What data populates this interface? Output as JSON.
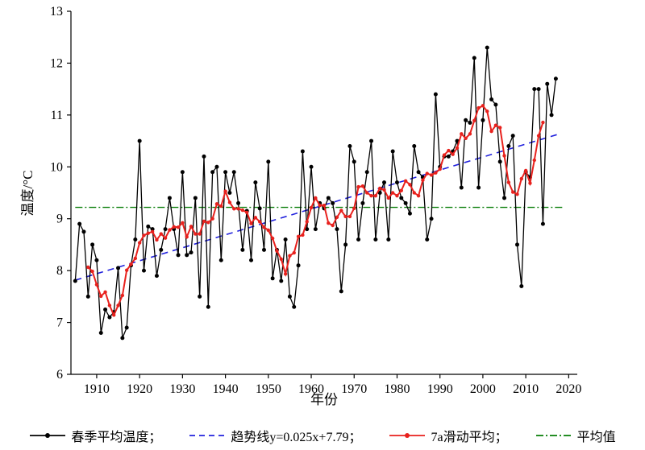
{
  "figure_title": "",
  "colors": {
    "series_main": "#000000",
    "trend": "#2222dd",
    "moving_avg": "#e8211d",
    "mean_line": "#067d06",
    "axis": "#000000"
  },
  "legend": {
    "items": [
      {
        "label": "春季平均温度；",
        "style": "solid-dot",
        "color": "#000000"
      },
      {
        "label": "趋势线y=0.025x+7.79；",
        "style": "dashed",
        "color": "#2222dd"
      },
      {
        "label": "7a滑动平均；",
        "style": "solid-dot",
        "color": "#e8211d"
      },
      {
        "label": "平均值",
        "style": "dash-dot",
        "color": "#067d06"
      }
    ]
  },
  "chart_data": {
    "type": "line",
    "title": "",
    "xlabel": "年份",
    "ylabel": "温度/°C",
    "xlim": [
      1904,
      2022
    ],
    "ylim": [
      6,
      13
    ],
    "xticks": [
      1910,
      1920,
      1930,
      1940,
      1950,
      1960,
      1970,
      1980,
      1990,
      2000,
      2010,
      2020
    ],
    "yticks": [
      6,
      7,
      8,
      9,
      10,
      11,
      12,
      13
    ],
    "grid": false,
    "legend_position": "bottom",
    "series": [
      {
        "name": "春季平均温度",
        "type": "line-markers",
        "start_year": 1905,
        "values": [
          7.8,
          8.9,
          8.75,
          7.5,
          8.5,
          8.2,
          6.8,
          7.25,
          7.1,
          7.2,
          8.05,
          6.7,
          6.9,
          8.1,
          8.6,
          10.5,
          8.0,
          8.85,
          8.8,
          7.9,
          8.4,
          8.8,
          9.4,
          8.8,
          8.3,
          9.9,
          8.3,
          8.35,
          9.4,
          7.5,
          10.2,
          7.3,
          9.9,
          10.0,
          8.2,
          9.9,
          9.5,
          9.9,
          9.3,
          8.4,
          9.15,
          8.2,
          9.7,
          9.2,
          8.4,
          10.1,
          7.85,
          8.4,
          7.8,
          8.6,
          7.5,
          7.3,
          8.1,
          10.3,
          8.8,
          10.0,
          8.8,
          9.3,
          9.2,
          9.4,
          9.3,
          8.8,
          7.6,
          8.5,
          10.4,
          10.1,
          8.6,
          9.3,
          9.9,
          10.5,
          8.6,
          9.5,
          9.7,
          8.6,
          10.3,
          9.7,
          9.4,
          9.3,
          9.1,
          10.4,
          9.9,
          9.8,
          8.6,
          9.0,
          11.4,
          10.0,
          10.2,
          10.2,
          10.3,
          10.5,
          9.6,
          10.9,
          10.85,
          12.1,
          9.6,
          10.9,
          12.3,
          11.3,
          11.2,
          10.1,
          9.4,
          10.4,
          10.6,
          8.5,
          7.7,
          9.9,
          9.8,
          11.5,
          11.5,
          8.9,
          11.6,
          11.0,
          11.7
        ]
      },
      {
        "name": "趋势线y=0.025x+7.79",
        "type": "trend",
        "slope": 0.025,
        "intercept": 7.79,
        "x_base_year": 1904,
        "x_start": 1905,
        "x_end": 2018
      },
      {
        "name": "7a滑动平均",
        "type": "moving-average",
        "window": 7
      },
      {
        "name": "平均值",
        "type": "hline",
        "value": 9.22,
        "x_start": 1905,
        "x_end": 2019
      }
    ]
  }
}
